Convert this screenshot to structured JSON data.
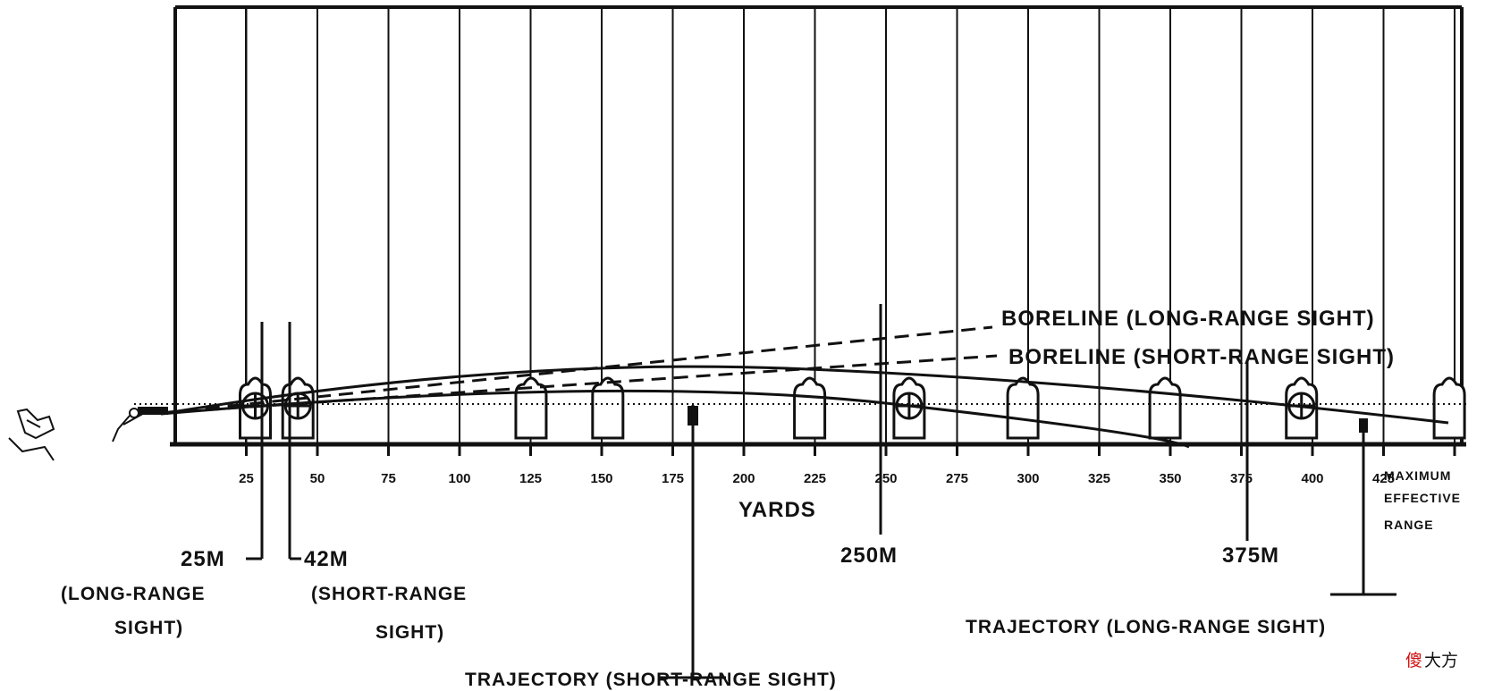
{
  "axis": {
    "unit_label": "YARDS",
    "ticks": [
      25,
      50,
      75,
      100,
      125,
      150,
      175,
      200,
      225,
      250,
      275,
      300,
      325,
      350,
      375,
      400,
      425
    ],
    "tick_labels": [
      "25",
      "50",
      "75",
      "100",
      "125",
      "150",
      "175",
      "200",
      "225",
      "250",
      "275",
      "300",
      "325",
      "350",
      "375",
      "400",
      "425"
    ],
    "end_label_lines": [
      "MAXIMUM",
      "EFFECTIVE",
      "RANGE"
    ]
  },
  "boreline_long": "BORELINE (LONG-RANGE SIGHT)",
  "boreline_short": "BORELINE (SHORT-RANGE SIGHT)",
  "markers": {
    "m25": {
      "line1": "25M",
      "line2": "(LONG-RANGE",
      "line3": "SIGHT)"
    },
    "m42": {
      "line1": "42M",
      "line2": "(SHORT-RANGE",
      "line3": "SIGHT)"
    },
    "m250": "250M",
    "m375": "375M"
  },
  "trajectory_short": "TRAJECTORY (SHORT-RANGE SIGHT)",
  "trajectory_long": "TRAJECTORY (LONG-RANGE SIGHT)",
  "watermark": {
    "char1": "傻",
    "char2": "大方",
    "color1": "#d01010",
    "color2": "#111111"
  }
}
